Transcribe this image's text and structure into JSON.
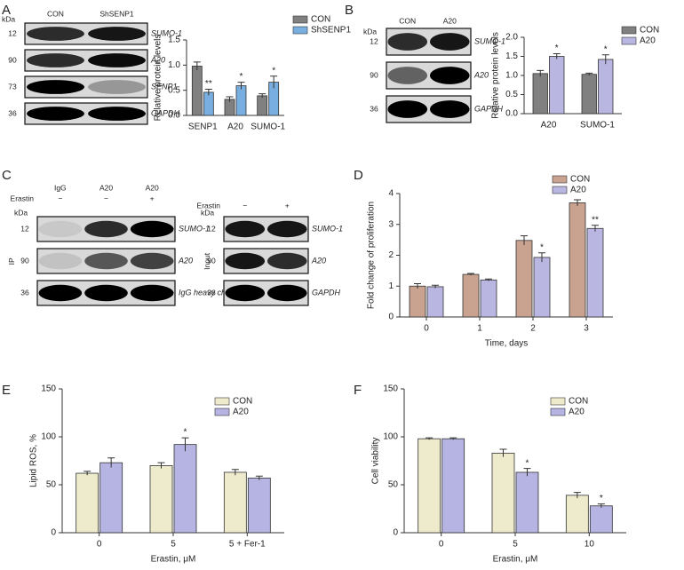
{
  "chart_data": [
    {
      "type": "bar",
      "panel": "A",
      "y_label": "Relative protein levels",
      "categories": [
        "SENP1",
        "A20",
        "SUMO-1"
      ],
      "series": [
        {
          "name": "CON",
          "color": "#808080",
          "values": [
            0.98,
            0.32,
            0.39
          ],
          "errors": [
            0.08,
            0.05,
            0.04
          ],
          "annotations": [
            null,
            null,
            null
          ]
        },
        {
          "name": "ShSENP1",
          "color": "#78aee0",
          "values": [
            0.46,
            0.59,
            0.66
          ],
          "errors": [
            0.06,
            0.07,
            0.12
          ],
          "annotations": [
            "**",
            "*",
            "*"
          ]
        }
      ],
      "ylim": [
        0,
        1.5
      ],
      "yticks": [
        {
          "value": 0,
          "label": "0.0"
        },
        0.5,
        {
          "value": 1,
          "label": "1.0"
        },
        1.5
      ],
      "legend": "top-right"
    },
    {
      "type": "bar",
      "panel": "B",
      "y_label": "Relative protein levels",
      "categories": [
        "A20",
        "SUMO-1"
      ],
      "series": [
        {
          "name": "CON",
          "color": "#808080",
          "values": [
            1.05,
            1.03
          ],
          "errors": [
            0.08,
            0.03
          ],
          "annotations": [
            null,
            null
          ]
        },
        {
          "name": "A20",
          "color": "#b9b6e2",
          "values": [
            1.5,
            1.42
          ],
          "errors": [
            0.07,
            0.12
          ],
          "annotations": [
            "*",
            "*"
          ]
        }
      ],
      "ylim": [
        0,
        2
      ],
      "yticks": [
        {
          "value": 0,
          "label": "0.0"
        },
        0.5,
        {
          "value": 1,
          "label": "1.0"
        },
        1.5,
        {
          "value": 2,
          "label": "2.0"
        }
      ],
      "legend": "top-right"
    },
    {
      "type": "bar",
      "panel": "D",
      "y_label": "Fold change of proliferation",
      "x_label": "Time, days",
      "categories": [
        "0",
        "1",
        "2",
        "3"
      ],
      "series": [
        {
          "name": "CON",
          "color": "#c9a290",
          "values": [
            1.0,
            1.38,
            2.48,
            3.7
          ],
          "errors": [
            0.08,
            0.03,
            0.15,
            0.1
          ],
          "annotations": [
            null,
            null,
            null,
            null
          ]
        },
        {
          "name": "A20",
          "color": "#b9b6e2",
          "values": [
            0.98,
            1.2,
            1.93,
            2.87
          ],
          "errors": [
            0.05,
            0.03,
            0.15,
            0.1
          ],
          "annotations": [
            null,
            null,
            "*",
            "**"
          ]
        }
      ],
      "ylim": [
        0,
        4
      ],
      "yticks": [
        0,
        1,
        2,
        3,
        4
      ],
      "legend": "top-right"
    },
    {
      "type": "bar",
      "panel": "E",
      "y_label": "Lipid ROS, %",
      "x_label": "Erastin, μM",
      "categories": [
        "0",
        "5",
        "5 + Fer-1"
      ],
      "series": [
        {
          "name": "CON",
          "color": "#eeeacc",
          "values": [
            62,
            70,
            63
          ],
          "errors": [
            2,
            3,
            3
          ],
          "annotations": [
            null,
            null,
            null
          ]
        },
        {
          "name": "A20",
          "color": "#b5b4e2",
          "values": [
            73,
            92,
            57
          ],
          "errors": [
            5,
            7,
            2
          ],
          "annotations": [
            null,
            "*",
            null
          ]
        }
      ],
      "ylim": [
        0,
        150
      ],
      "yticks": [
        0,
        50,
        100,
        150
      ],
      "legend": "top-right"
    },
    {
      "type": "bar",
      "panel": "F",
      "y_label": "Cell viability",
      "x_label": "Erastin, μM",
      "categories": [
        "0",
        "5",
        "10"
      ],
      "series": [
        {
          "name": "CON",
          "color": "#eeeacc",
          "values": [
            98,
            83,
            39
          ],
          "errors": [
            1,
            4,
            3
          ],
          "annotations": [
            null,
            null,
            null
          ]
        },
        {
          "name": "A20",
          "color": "#b5b4e2",
          "values": [
            98,
            63,
            28
          ],
          "errors": [
            1,
            4,
            2
          ],
          "annotations": [
            null,
            "*",
            "*"
          ]
        }
      ],
      "ylim": [
        0,
        150
      ],
      "yticks": [
        0,
        50,
        100,
        150
      ],
      "legend": "top-right"
    }
  ],
  "blots": [
    {
      "columns": [
        "CON",
        "ShSENP1"
      ],
      "unit": "kDa",
      "rows": [
        {
          "kda": 12,
          "protein": "SUMO-1"
        },
        {
          "kda": 90,
          "protein": "A20"
        },
        {
          "kda": 73,
          "protein": "SENP1"
        },
        {
          "kda": 36,
          "protein": "GAPDH"
        }
      ]
    },
    {
      "columns": [
        "CON",
        "A20"
      ],
      "unit": "kDa",
      "rows": [
        {
          "kda": 12,
          "protein": "SUMO-1"
        },
        {
          "kda": 90,
          "protein": "A20"
        },
        {
          "kda": 36,
          "protein": "GAPDH"
        }
      ]
    },
    {
      "panel": "C",
      "side": "IP",
      "columns": [
        "IgG",
        "A20",
        "A20"
      ],
      "treatment": "Erastin",
      "signs": [
        "−",
        "−",
        "+"
      ],
      "unit": "kDa",
      "rows": [
        {
          "kda": 12,
          "protein": "SUMO-1"
        },
        {
          "kda": 90,
          "protein": "A20"
        },
        {
          "kda": 36,
          "protein": "IgG heavy chain"
        }
      ]
    },
    {
      "side": "Input",
      "treatment": "Erastin",
      "signs": [
        "−",
        "+"
      ],
      "unit": "kDa",
      "rows": [
        {
          "kda": 12,
          "protein": "SUMO-1"
        },
        {
          "kda": 90,
          "protein": "A20"
        },
        {
          "kda": 36,
          "protein": "GAPDH"
        }
      ]
    }
  ]
}
